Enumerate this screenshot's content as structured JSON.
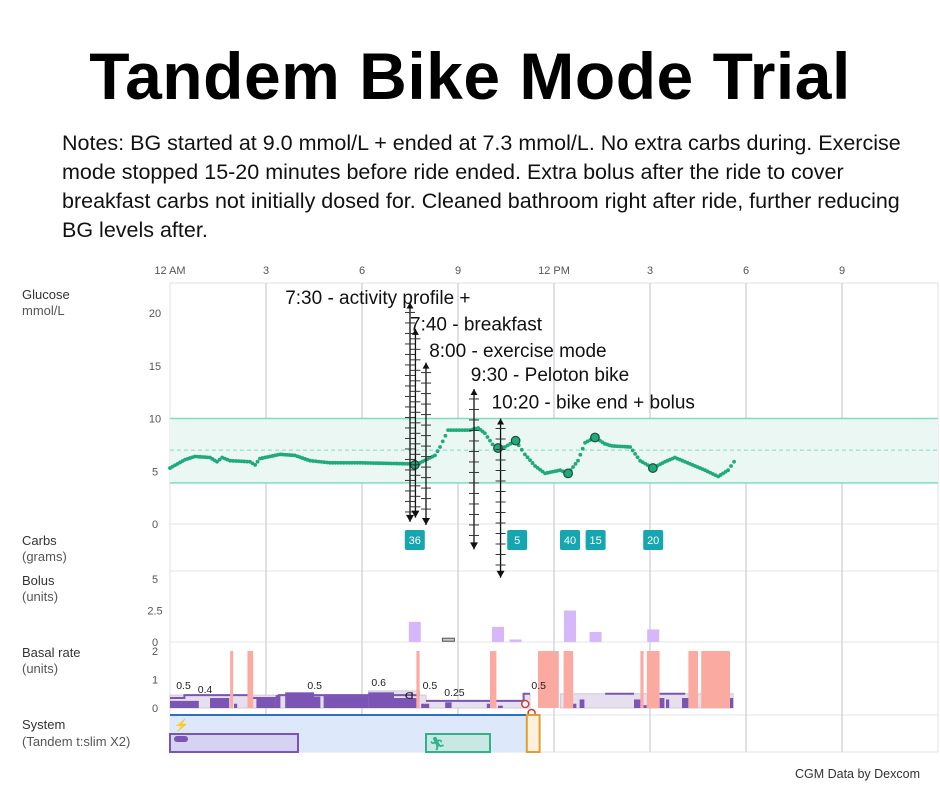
{
  "title": "Tandem Bike Mode Trial",
  "notes": "Notes: BG started at 9.0 mmol/L + ended at 7.3 mmol/L. No extra carbs during. Exercise mode stopped 15-20 minutes before ride ended. Extra bolus after the ride to cover breakfast carbs not initially dosed for. Cleaned bathroom right after ride, further reducing BG levels after.",
  "footer": "CGM Data by Dexcom",
  "colors": {
    "glucose": "#1faa7a",
    "target_band": "#eaf7f3",
    "target_line": "#7fdcc0",
    "carbs": "#16a6b0",
    "bolus": "#d6b8fa",
    "basal_delivered": "#7a55b3",
    "basal_scheduled": "#e6e0ee",
    "automated": "#fbaaa2",
    "system_band": "#dde9fb",
    "exercise": "#2fb38b",
    "suspend": "#e0a030"
  },
  "chart_data": [
    {
      "type": "line",
      "name_label": "Glucose",
      "unit_label": "mmol/L",
      "x_ticks": [
        {
          "h": 0,
          "label": "12 AM"
        },
        {
          "h": 3,
          "label": "3"
        },
        {
          "h": 6,
          "label": "6"
        },
        {
          "h": 9,
          "label": "9"
        },
        {
          "h": 12,
          "label": "12 PM"
        },
        {
          "h": 15,
          "label": "3"
        },
        {
          "h": 18,
          "label": "6"
        },
        {
          "h": 21,
          "label": "9"
        }
      ],
      "xlim_hours": [
        0,
        24
      ],
      "y_ticks": [
        0,
        5,
        10,
        15,
        20
      ],
      "ylim": [
        0,
        22.5
      ],
      "target_range": [
        3.9,
        10
      ],
      "target_mid": 7,
      "points": [
        [
          0,
          5.3
        ],
        [
          0.47,
          6.1
        ],
        [
          0.78,
          6.4
        ],
        [
          1.25,
          6.3
        ],
        [
          1.47,
          5.9
        ],
        [
          1.63,
          6.3
        ],
        [
          1.88,
          6.0
        ],
        [
          2.5,
          5.9
        ],
        [
          2.66,
          5.6
        ],
        [
          2.81,
          6.2
        ],
        [
          3.44,
          6.6
        ],
        [
          3.9,
          6.5
        ],
        [
          4.38,
          6.0
        ],
        [
          5.0,
          5.8
        ],
        [
          5.94,
          5.8
        ],
        [
          7.5,
          5.7
        ],
        [
          7.65,
          5.6
        ],
        [
          7.81,
          5.8
        ],
        [
          8.28,
          6.5
        ],
        [
          8.44,
          7.3
        ],
        [
          8.69,
          8.9
        ],
        [
          9.38,
          8.9
        ],
        [
          9.63,
          9.1
        ],
        [
          9.84,
          8.6
        ],
        [
          10.16,
          7.2
        ],
        [
          10.25,
          7.2
        ],
        [
          10.47,
          7.3
        ],
        [
          10.8,
          7.9
        ],
        [
          11.09,
          6.6
        ],
        [
          11.41,
          5.5
        ],
        [
          11.72,
          4.8
        ],
        [
          12.19,
          5.1
        ],
        [
          12.44,
          4.8
        ],
        [
          12.75,
          6.0
        ],
        [
          12.97,
          7.7
        ],
        [
          13.28,
          8.2
        ],
        [
          13.59,
          7.6
        ],
        [
          13.81,
          7.4
        ],
        [
          14.38,
          7.3
        ],
        [
          14.69,
          6.0
        ],
        [
          15.09,
          5.3
        ],
        [
          15.47,
          5.9
        ],
        [
          15.78,
          6.3
        ],
        [
          16.25,
          5.7
        ],
        [
          16.72,
          5.1
        ],
        [
          17.13,
          4.5
        ],
        [
          17.44,
          5.1
        ],
        [
          17.72,
          6.3
        ]
      ],
      "highlighted_points": [
        [
          7.65,
          5.6
        ],
        [
          10.25,
          7.2
        ],
        [
          10.8,
          7.9
        ],
        [
          12.44,
          4.8
        ],
        [
          13.28,
          8.2
        ],
        [
          15.09,
          5.3
        ]
      ]
    },
    {
      "type": "scatter",
      "name_label": "Carbs",
      "unit_label": "(grams)",
      "points": [
        [
          7.65,
          36
        ],
        [
          10.85,
          5
        ],
        [
          12.5,
          40
        ],
        [
          13.3,
          15
        ],
        [
          15.1,
          20
        ]
      ]
    },
    {
      "type": "bar",
      "name_label": "Bolus",
      "unit_label": "(units)",
      "y_ticks": [
        "0",
        "2.5",
        "5"
      ],
      "ylim": [
        0,
        5
      ],
      "bars": [
        [
          7.65,
          1.6
        ],
        [
          8.7,
          0.1
        ],
        [
          10.25,
          1.2
        ],
        [
          10.8,
          0.2
        ],
        [
          12.5,
          2.5
        ],
        [
          13.3,
          0.8
        ],
        [
          15.1,
          1.0
        ]
      ]
    },
    {
      "type": "area",
      "name_label": "Basal rate",
      "unit_label": "(units)",
      "y_ticks": [
        "0",
        "1",
        "2"
      ],
      "ylim": [
        0,
        2
      ],
      "scheduled": [
        [
          0,
          0.45
        ],
        [
          6.2,
          0.6
        ],
        [
          7.8,
          0.45
        ],
        [
          8.0,
          0.25
        ],
        [
          11.05,
          0.5
        ],
        [
          11.25,
          null
        ],
        [
          12.2,
          0.5
        ],
        [
          17.6,
          null
        ]
      ],
      "temp_line": [
        [
          0,
          0.35
        ],
        [
          0.45,
          0.45
        ],
        [
          1.9,
          0.45
        ],
        [
          2.5,
          0.35
        ],
        [
          3.3,
          0.35
        ],
        [
          3.4,
          0.45
        ],
        [
          6.2,
          0.45
        ],
        [
          7.8,
          null
        ],
        [
          8.0,
          0.25
        ],
        [
          10.9,
          0.25
        ],
        [
          11.05,
          0.5
        ],
        [
          11.25,
          null
        ],
        [
          13.6,
          0.5
        ],
        [
          14.5,
          null
        ],
        [
          15.3,
          0.5
        ],
        [
          16.1,
          null
        ]
      ],
      "delivered": [
        [
          0,
          0.9,
          0.25
        ],
        [
          1.25,
          1.85,
          0.35
        ],
        [
          2.0,
          2.1,
          0.15
        ],
        [
          2.7,
          3.3,
          0.35
        ],
        [
          3.3,
          3.45,
          0.45
        ],
        [
          3.6,
          4.5,
          0.55
        ],
        [
          4.5,
          4.7,
          0.4
        ],
        [
          4.8,
          6.2,
          0.42
        ],
        [
          6.2,
          7.0,
          0.55
        ],
        [
          7.0,
          7.7,
          0.35
        ],
        [
          7.85,
          8.1,
          0.15
        ],
        [
          8.6,
          8.8,
          0.2
        ],
        [
          9.9,
          10.0,
          0.15
        ],
        [
          10.25,
          10.4,
          0.08
        ],
        [
          12.5,
          12.7,
          0.15
        ],
        [
          12.8,
          12.95,
          0.3
        ],
        [
          14.5,
          14.7,
          0.3
        ],
        [
          14.75,
          14.9,
          0.1
        ],
        [
          15.3,
          15.45,
          0.35
        ],
        [
          15.5,
          15.6,
          0.3
        ],
        [
          16.0,
          16.2,
          0.35
        ],
        [
          16.25,
          16.4,
          0.15
        ],
        [
          17.45,
          17.6,
          0.35
        ]
      ],
      "automated_max": [
        [
          1.88,
          1.95
        ],
        [
          2.42,
          2.6
        ],
        [
          7.7,
          7.8
        ],
        [
          10.0,
          10.2
        ],
        [
          11.5,
          12.15
        ],
        [
          12.3,
          12.6
        ],
        [
          14.7,
          14.8
        ],
        [
          14.9,
          15.3
        ],
        [
          16.2,
          16.5
        ],
        [
          16.6,
          17.5
        ]
      ],
      "rate_labels": [
        {
          "h": 0.1,
          "v": 0.6,
          "label": "0.5"
        },
        {
          "h": 0.1,
          "v": 0.45,
          "label": "0.4"
        },
        {
          "h": 4.2,
          "v": 0.6,
          "label": "0.5"
        },
        {
          "h": 6.2,
          "v": 0.7,
          "label": "0.6"
        },
        {
          "h": 7.8,
          "v": 0.6,
          "label": "0.5"
        },
        {
          "h": 8.1,
          "v": 0.35,
          "label": "0.25"
        },
        {
          "h": 11.2,
          "v": 0.6,
          "label": "0.5"
        }
      ],
      "suspend_markers": [
        11.1,
        11.3
      ]
    },
    {
      "type": "timeline",
      "name_label": "System",
      "unit_label": "(Tandem t:slim X2)",
      "automated_mode": [
        0,
        11.25
      ],
      "sleep_activity": [
        0,
        4.0
      ],
      "exercise_activity": [
        8.0,
        10.0
      ],
      "suspended": [
        11.15,
        11.55
      ]
    }
  ],
  "annotations": [
    {
      "label": "7:30 - activity profile +",
      "h": 7.5,
      "top": 21,
      "bottom": 0.2,
      "text_h": 3.6,
      "text_v": 21.5
    },
    {
      "label": "7:40 - breakfast",
      "h": 7.67,
      "top": 18.5,
      "bottom": 0.6,
      "text_h": 7.5,
      "text_v": 19.0
    },
    {
      "label": "8:00 - exercise mode",
      "h": 8.0,
      "top": 15.3,
      "bottom": -0.1,
      "text_h": 8.1,
      "text_v": 16.5
    },
    {
      "label": "9:30 - Peloton bike",
      "h": 9.5,
      "top": 12.8,
      "bottom": -2.4,
      "text_h": 9.4,
      "text_v": 14.2
    },
    {
      "label": "10:20 - bike end + bolus",
      "h": 10.33,
      "top": 10.0,
      "bottom": -5.1,
      "text_h": 10.05,
      "text_v": 11.6
    }
  ]
}
